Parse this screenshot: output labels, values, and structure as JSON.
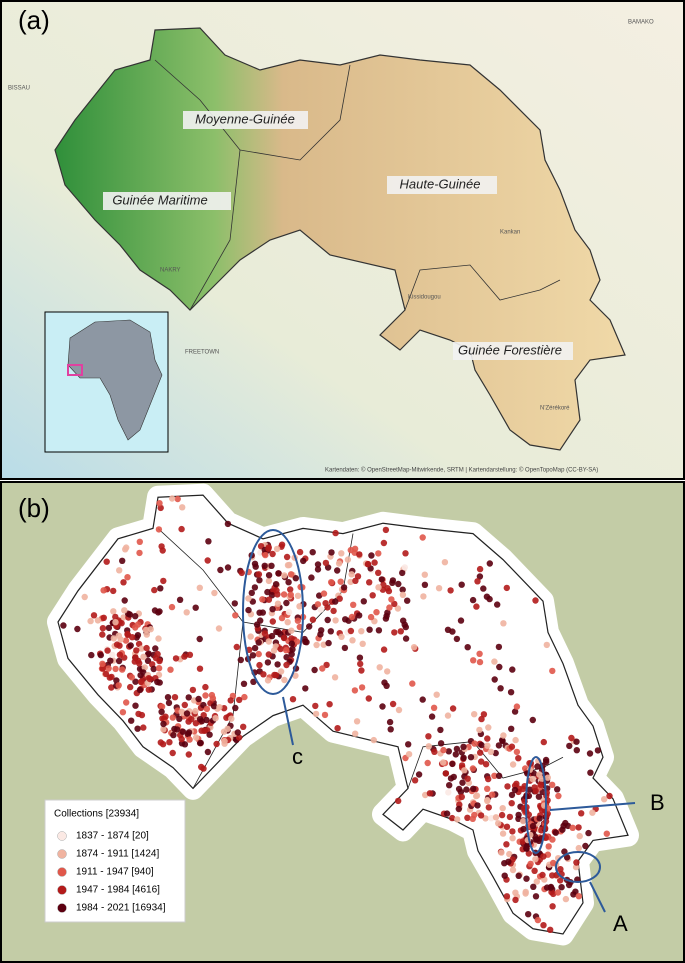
{
  "panel_a": {
    "label": "(a)",
    "regions": [
      "Moyenne-Guinée",
      "Guinée Maritime",
      "Haute-Guinée",
      "Guinée Forestière"
    ],
    "places": [
      "BAMAKO",
      "BISSAU",
      "FREETOWN",
      "NAKRY",
      "Kankan",
      "Kissidougou",
      "N'Zérékoré"
    ],
    "attribution": "Kartendaten: © OpenStreetMap-Mitwirkende, SRTM | Kartendarstellung: © OpenTopoMap (CC-BY-SA)"
  },
  "panel_b": {
    "label": "(b)",
    "legend": {
      "title": "Collections  [23934]",
      "entries": [
        {
          "label": "1837 - 1874 [20]",
          "color": "#fbe9e4"
        },
        {
          "label": "1874 - 1911 [1424]",
          "color": "#f0b3a0"
        },
        {
          "label": "1911 - 1947 [940]",
          "color": "#e0574a"
        },
        {
          "label": "1947 - 1984 [4616]",
          "color": "#b31b1b"
        },
        {
          "label": "1984 - 2021 [16934]",
          "color": "#5c0010"
        }
      ]
    },
    "annotations": [
      "A",
      "B",
      "c"
    ]
  }
}
